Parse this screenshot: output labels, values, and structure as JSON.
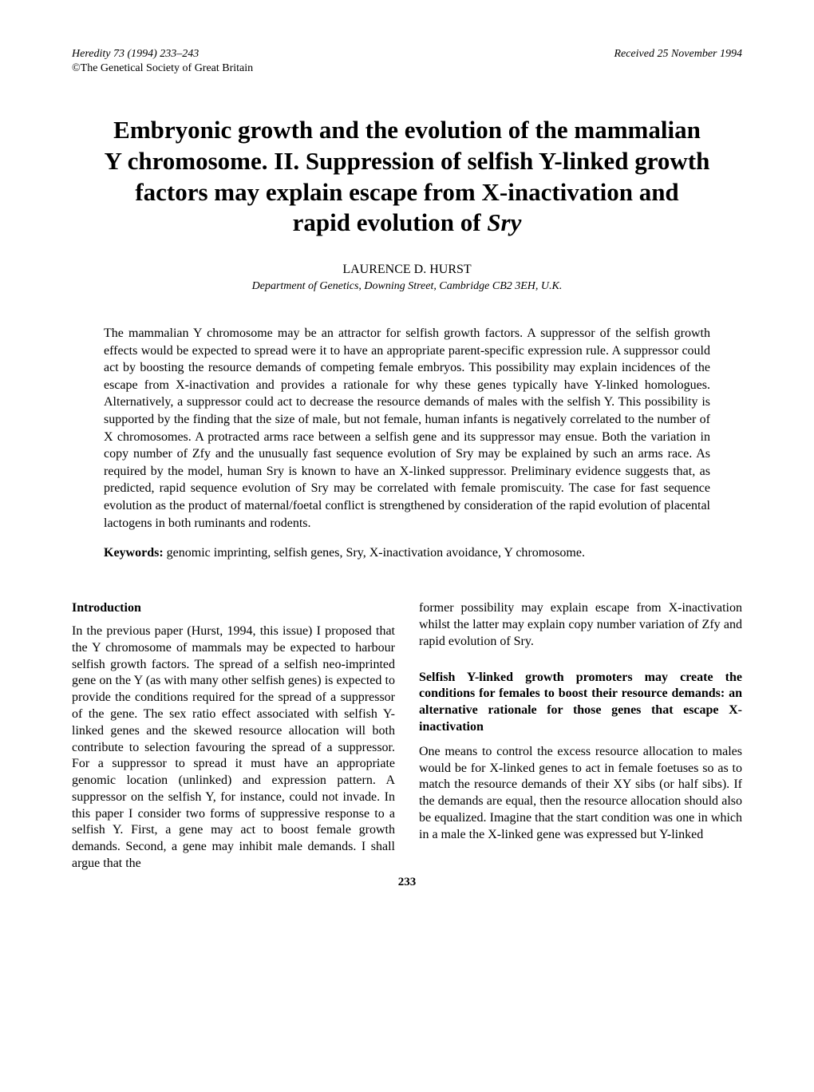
{
  "header": {
    "journal_ref": "Heredity 73 (1994) 233–243",
    "copyright": "©The Genetical Society of Great Britain",
    "received": "Received 25 November 1994"
  },
  "title": {
    "main": "Embryonic growth and the evolution of the mammalian Y chromosome. II. Suppression of selfish Y-linked growth factors may explain escape from X-inactivation and rapid evolution of ",
    "italic_gene": "Sry"
  },
  "author": "LAURENCE D. HURST",
  "affiliation": "Department of Genetics, Downing Street, Cambridge CB2 3EH, U.K.",
  "abstract": "The mammalian Y chromosome may be an attractor for selfish growth factors. A suppressor of the selfish growth effects would be expected to spread were it to have an appropriate parent-specific expression rule. A suppressor could act by boosting the resource demands of competing female embryos. This possibility may explain incidences of the escape from X-inactivation and provides a rationale for why these genes typically have Y-linked homologues. Alternatively, a suppressor could act to decrease the resource demands of males with the selfish Y. This possibility is supported by the finding that the size of male, but not female, human infants is negatively correlated to the number of X chromosomes. A protracted arms race between a selfish gene and its suppressor may ensue. Both the variation in copy number of Zfy and the unusually fast sequence evolution of Sry may be explained by such an arms race. As required by the model, human Sry is known to have an X-linked suppressor. Preliminary evidence suggests that, as predicted, rapid sequence evolution of Sry may be correlated with female promiscuity. The case for fast sequence evolution as the product of maternal/foetal conflict is strengthened by consideration of the rapid evolution of placental lactogens in both ruminants and rodents.",
  "keywords": {
    "label": "Keywords:",
    "text": " genomic imprinting, selfish genes, Sry, X-inactivation avoidance, Y chromosome."
  },
  "sections": {
    "introduction": {
      "heading": "Introduction",
      "text": "In the previous paper (Hurst, 1994, this issue) I proposed that the Y chromosome of mammals may be expected to harbour selfish growth factors. The spread of a selfish neo-imprinted gene on the Y (as with many other selfish genes) is expected to provide the conditions required for the spread of a suppressor of the gene. The sex ratio effect associated with selfish Y-linked genes and the skewed resource allocation will both contribute to selection favouring the spread of a suppressor. For a suppressor to spread it must have an appropriate genomic location (unlinked) and expression pattern. A suppressor on the selfish Y, for instance, could not invade. In this paper I consider two forms of suppressive response to a selfish Y. First, a gene may act to boost female growth demands. Second, a gene may inhibit male demands. I shall argue that the"
    },
    "col2_intro_continuation": "former possibility may explain escape from X-inactivation whilst the latter may explain copy number variation of Zfy and rapid evolution of Sry.",
    "section2": {
      "heading": "Selfish Y-linked growth promoters may create the conditions for females to boost their resource demands: an alternative rationale for those genes that escape X-inactivation",
      "text": "One means to control the excess resource allocation to males would be for X-linked genes to act in female foetuses so as to match the resource demands of their XY sibs (or half sibs). If the demands are equal, then the resource allocation should also be equalized. Imagine that the start condition was one in which in a male the X-linked gene was expressed but Y-linked"
    }
  },
  "page_number": "233"
}
